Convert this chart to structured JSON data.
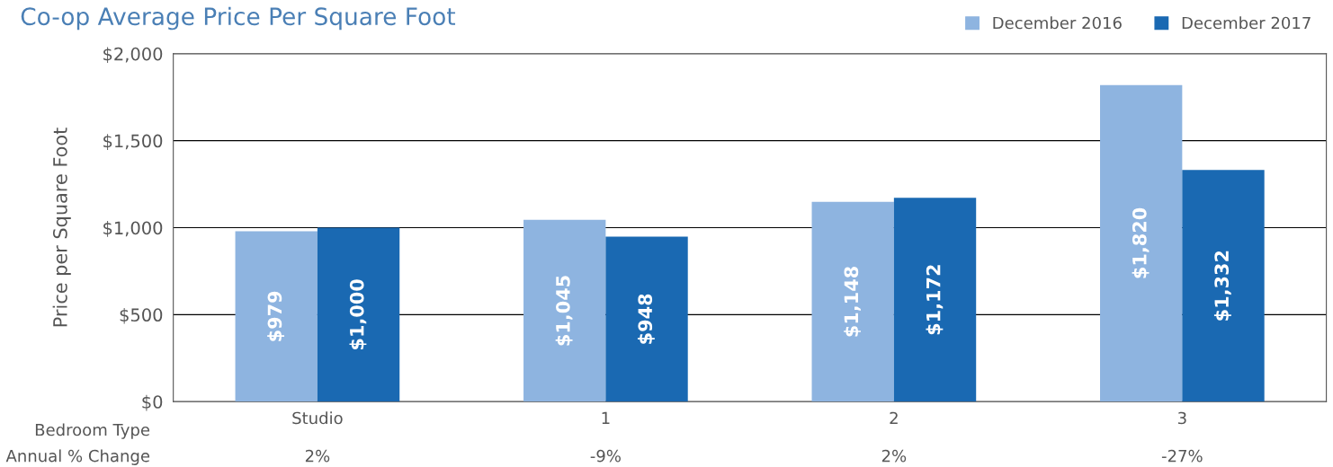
{
  "chart_data": {
    "type": "bar",
    "title": "Co-op Average Price Per Square Foot",
    "ylabel": "Price per Square Foot",
    "xlabel": "Bedroom Type",
    "categories": [
      "Studio",
      "1",
      "2",
      "3"
    ],
    "series": [
      {
        "name": "December 2016",
        "color": "#8eb4e0",
        "values": [
          979,
          1045,
          1148,
          1820
        ],
        "value_labels": [
          "$979",
          "$1,045",
          "$1,148",
          "$1,820"
        ]
      },
      {
        "name": "December 2017",
        "color": "#1a69b2",
        "values": [
          1000,
          948,
          1172,
          1332
        ],
        "value_labels": [
          "$1,000",
          "$948",
          "$1,172",
          "$1,332"
        ]
      }
    ],
    "ylim": [
      0,
      2000
    ],
    "yticks": [
      {
        "value": 0,
        "label": "$0"
      },
      {
        "value": 500,
        "label": "$500"
      },
      {
        "value": 1000,
        "label": "$1,000"
      },
      {
        "value": 1500,
        "label": "$1,500"
      },
      {
        "value": 2000,
        "label": "$2,000"
      }
    ],
    "grid": "y",
    "legend": "top right",
    "annotations": [
      "Annual % Change",
      "2%",
      "-9%",
      "2%",
      "-27%"
    ]
  }
}
